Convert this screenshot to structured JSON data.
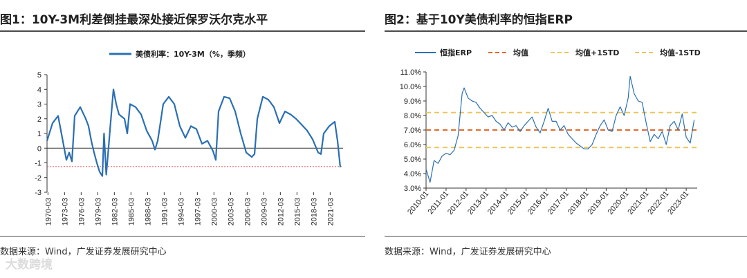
{
  "left": {
    "title": "图1：10Y-3M利差倒挂最深处接近保罗沃尔克水平",
    "source": "数据来源：Wind，广发证券发展研究中心"
  },
  "right": {
    "title": "图2：基于10Y美债利率的恒指ERP",
    "source": "数据来源：Wind，广发证券发展研究中心"
  },
  "watermark": "大数跨境",
  "colors": {
    "series": "#2a6fb3",
    "mean": "#e06a2c",
    "std": "#e8c65a",
    "threshold": "#e05050"
  },
  "chart_data": [
    {
      "type": "line",
      "legend": [
        "美债利率：10Y-3M（%，季频）"
      ],
      "legend_position": "top",
      "ylim": [
        -3,
        5
      ],
      "yticks": [
        "5",
        "4",
        "3",
        "2",
        "1",
        "0",
        "-1",
        "-2",
        "-3"
      ],
      "xticks": [
        "1970-03",
        "1973-03",
        "1976-03",
        "1979-03",
        "1982-03",
        "1985-03",
        "1988-03",
        "1991-03",
        "1994-03",
        "1997-03",
        "2000-03",
        "2003-03",
        "2006-03",
        "2009-03",
        "2012-03",
        "2015-03",
        "2018-03",
        "2021-03"
      ],
      "reference_line": -1.25,
      "series": [
        {
          "name": "美债利率：10Y-3M（%，季频）",
          "x": [
            1970,
            1971,
            1972,
            1973,
            1973.5,
            1974,
            1974.5,
            1975,
            1976,
            1977,
            1977.5,
            1978,
            1978.5,
            1979,
            1979.5,
            1980,
            1980.3,
            1980.7,
            1981,
            1981.5,
            1982,
            1982.5,
            1983,
            1984,
            1984.5,
            1985,
            1986,
            1987,
            1988,
            1989,
            1989.5,
            1990,
            1991,
            1992,
            1993,
            1994,
            1995,
            1996,
            1997,
            1998,
            1999,
            2000,
            2000.5,
            2001,
            2002,
            2003,
            2004,
            2005,
            2006,
            2007,
            2007.5,
            2008,
            2009,
            2010,
            2011,
            2012,
            2013,
            2014,
            2015,
            2016,
            2017,
            2018,
            2019,
            2019.5,
            2020,
            2021,
            2022,
            2022.5,
            2023
          ],
          "values": [
            0.5,
            1.7,
            2.2,
            0.2,
            -0.8,
            -0.3,
            -0.9,
            2.2,
            2.8,
            2.0,
            1.5,
            0.5,
            -0.3,
            -1.0,
            -1.6,
            -1.9,
            1.0,
            -1.8,
            -0.5,
            1.8,
            4.0,
            3.0,
            2.3,
            2.0,
            1.0,
            3.0,
            2.8,
            2.3,
            1.2,
            0.5,
            -0.1,
            0.5,
            3.0,
            3.5,
            3.0,
            1.5,
            0.7,
            1.5,
            1.3,
            0.3,
            0.5,
            -0.2,
            -0.8,
            2.5,
            3.5,
            3.4,
            2.5,
            1.0,
            -0.3,
            -0.6,
            -0.4,
            2.0,
            3.5,
            3.3,
            2.8,
            1.7,
            2.5,
            2.3,
            2.0,
            1.6,
            1.2,
            0.6,
            -0.3,
            -0.4,
            1.0,
            1.5,
            1.8,
            0.5,
            -1.3
          ]
        }
      ]
    },
    {
      "type": "line",
      "legend": [
        "恒指ERP",
        "均值",
        "均值+1STD",
        "均值-1STD"
      ],
      "legend_position": "top",
      "ylim": [
        3.0,
        11.0
      ],
      "yticks": [
        "11.0%",
        "10.0%",
        "9.0%",
        "8.0%",
        "7.0%",
        "6.0%",
        "5.0%",
        "4.0%",
        "3.0%"
      ],
      "xticks": [
        "2010-01",
        "2011-01",
        "2012-01",
        "2013-01",
        "2014-01",
        "2015-01",
        "2016-01",
        "2017-01",
        "2018-01",
        "2019-01",
        "2020-01",
        "2021-01",
        "2022-01",
        "2023-01"
      ],
      "mean": 7.0,
      "mean_plus_1std": 8.2,
      "mean_minus_1std": 5.8,
      "series": [
        {
          "name": "恒指ERP",
          "x": [
            2010.0,
            2010.2,
            2010.4,
            2010.6,
            2010.8,
            2011.0,
            2011.2,
            2011.4,
            2011.6,
            2011.8,
            2011.9,
            2012.1,
            2012.3,
            2012.5,
            2012.7,
            2012.9,
            2013.1,
            2013.3,
            2013.5,
            2013.7,
            2013.9,
            2014.1,
            2014.3,
            2014.5,
            2014.7,
            2014.9,
            2015.1,
            2015.3,
            2015.5,
            2015.7,
            2015.9,
            2016.1,
            2016.3,
            2016.5,
            2016.7,
            2016.9,
            2017.1,
            2017.3,
            2017.5,
            2017.7,
            2017.9,
            2018.1,
            2018.3,
            2018.5,
            2018.7,
            2018.9,
            2019.1,
            2019.3,
            2019.5,
            2019.7,
            2019.9,
            2020.1,
            2020.2,
            2020.4,
            2020.6,
            2020.8,
            2021.0,
            2021.2,
            2021.4,
            2021.6,
            2021.8,
            2022.0,
            2022.2,
            2022.4,
            2022.6,
            2022.8,
            2023.0,
            2023.2,
            2023.4
          ],
          "values": [
            4.3,
            3.4,
            4.9,
            4.7,
            5.2,
            5.4,
            5.3,
            5.6,
            6.6,
            9.5,
            9.9,
            9.2,
            9.0,
            8.9,
            8.5,
            8.2,
            7.9,
            8.0,
            7.6,
            7.4,
            7.0,
            7.5,
            7.2,
            7.3,
            6.9,
            7.3,
            7.6,
            7.9,
            7.2,
            6.8,
            7.6,
            8.5,
            7.6,
            7.6,
            7.0,
            7.3,
            6.7,
            6.4,
            6.1,
            5.9,
            5.7,
            5.7,
            6.0,
            6.7,
            7.3,
            7.7,
            7.0,
            6.9,
            8.0,
            8.6,
            8.0,
            9.2,
            10.7,
            9.5,
            9.0,
            8.9,
            7.5,
            6.2,
            6.7,
            6.4,
            6.9,
            6.0,
            7.3,
            7.6,
            7.0,
            8.1,
            6.5,
            6.1,
            7.7
          ]
        }
      ]
    }
  ]
}
